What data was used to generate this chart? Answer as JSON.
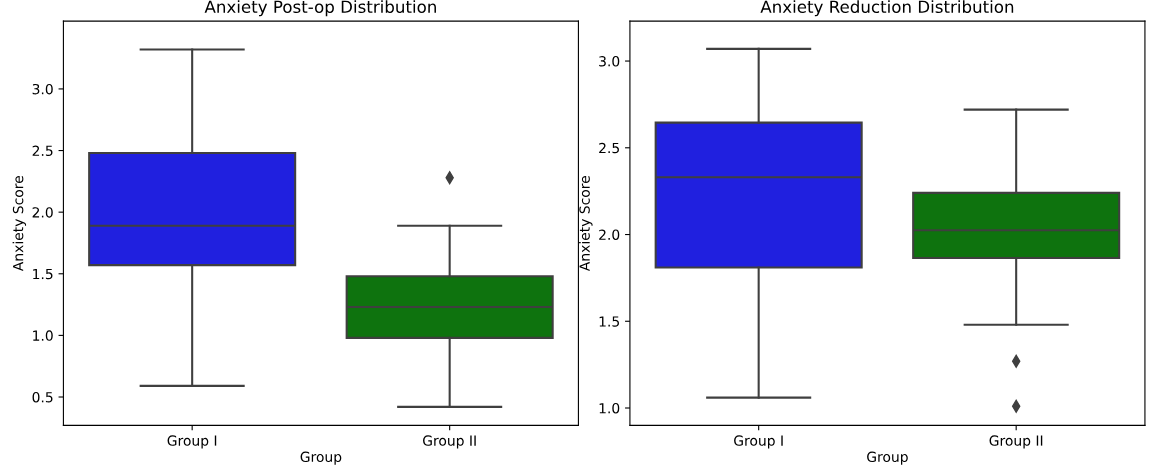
{
  "chart_data": [
    {
      "type": "box",
      "title": "Anxiety Post-op Distribution",
      "xlabel": "Group",
      "ylabel": "Anxiety Score",
      "categories": [
        "Group I",
        "Group II"
      ],
      "colors": [
        "#2020df",
        "#0e730e"
      ],
      "boxes": [
        {
          "low": 0.59,
          "q1": 1.57,
          "median": 1.89,
          "q3": 2.48,
          "high": 3.32
        },
        {
          "low": 0.42,
          "q1": 0.98,
          "median": 1.23,
          "q3": 1.48,
          "high": 1.89,
          "outliers": [
            2.28
          ]
        }
      ],
      "ylim": [
        0.27,
        3.55
      ],
      "yticks": [
        {
          "value": 0.5,
          "label": "0.5"
        },
        {
          "value": 1,
          "label": "1.0"
        },
        {
          "value": 1.5,
          "label": "1.5"
        },
        {
          "value": 2,
          "label": "2.0"
        },
        {
          "value": 2.5,
          "label": "2.5"
        },
        {
          "value": 3,
          "label": "3.0"
        }
      ],
      "marker": "diamond",
      "grid": false,
      "legend": false
    },
    {
      "type": "box",
      "title": "Anxiety Reduction Distribution",
      "xlabel": "Group",
      "ylabel": "Anxiety Score",
      "categories": [
        "Group I",
        "Group II"
      ],
      "colors": [
        "#2020df",
        "#0e730e"
      ],
      "boxes": [
        {
          "low": 1.06,
          "q1": 1.81,
          "median": 2.33,
          "q3": 2.645,
          "high": 3.07
        },
        {
          "low": 1.48,
          "q1": 1.865,
          "median": 2.025,
          "q3": 2.24,
          "high": 2.72,
          "outliers": [
            1.27,
            1.01
          ]
        }
      ],
      "ylim": [
        0.9,
        3.23
      ],
      "yticks": [
        {
          "value": 1,
          "label": "1.0"
        },
        {
          "value": 1.5,
          "label": "1.5"
        },
        {
          "value": 2,
          "label": "2.0"
        },
        {
          "value": 2.5,
          "label": "2.5"
        },
        {
          "value": 3,
          "label": "3.0"
        }
      ],
      "marker": "diamond",
      "grid": false,
      "legend": false
    }
  ]
}
